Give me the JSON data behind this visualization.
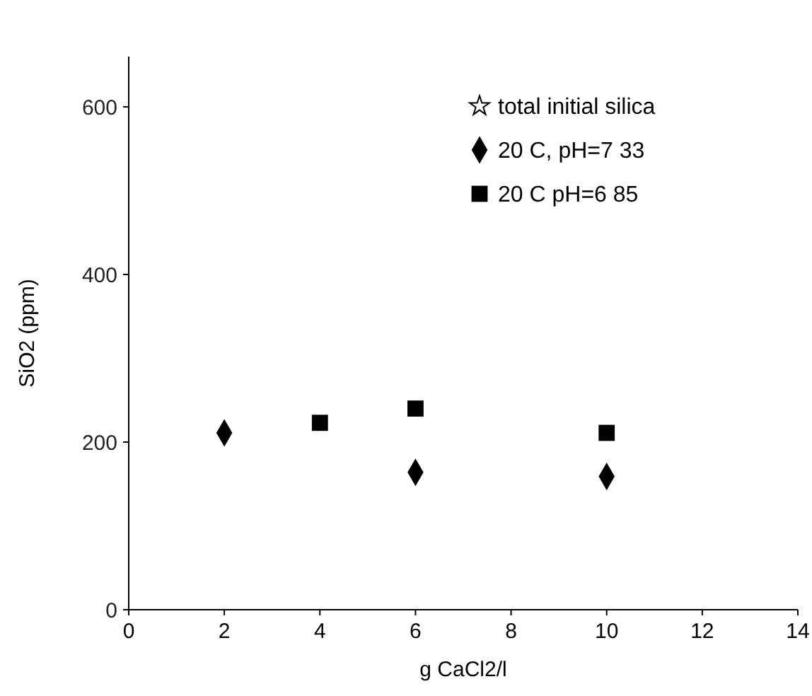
{
  "chart_data": {
    "type": "scatter",
    "xlabel": "g CaCl2/l",
    "ylabel": "SiO2 (ppm)",
    "x": [
      2,
      4,
      6,
      10
    ],
    "series": [
      {
        "name": "total initial silica",
        "color": "#000000",
        "marker": "star",
        "values": [
          null,
          null,
          null,
          null
        ]
      },
      {
        "name": "20 C, pH=7 33",
        "color": "#000000",
        "marker": "diamond",
        "values": [
          211,
          null,
          164,
          159
        ]
      },
      {
        "name": "20 C  pH=6 85",
        "color": "#000000",
        "marker": "square",
        "values": [
          null,
          223,
          240,
          211
        ]
      }
    ],
    "xlim": [
      0,
      14
    ],
    "xticks": [
      0,
      2,
      4,
      6,
      8,
      10,
      12,
      14
    ],
    "ylim": [
      0,
      660
    ],
    "yticks": [
      0,
      200,
      400,
      600
    ],
    "grid": false,
    "legend": "top right"
  }
}
